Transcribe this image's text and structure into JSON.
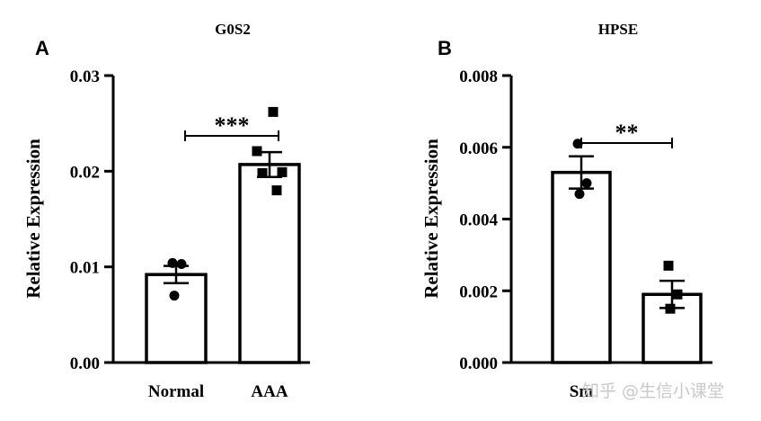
{
  "watermark": "知乎 @生信小课堂",
  "chart_data": [
    {
      "type": "bar",
      "panel": "A",
      "title": "G0S2",
      "ylabel": "Relative  Expression",
      "ylim": [
        0,
        0.03
      ],
      "yticks": [
        "0.00",
        "0.01",
        "0.02",
        "0.03"
      ],
      "ytick_values": [
        0,
        0.01,
        0.02,
        0.03
      ],
      "categories": [
        "Normal",
        "AAA"
      ],
      "values": [
        0.0092,
        0.0207
      ],
      "error": [
        0.0009,
        0.0013
      ],
      "points": [
        [
          0.0104,
          0.0103,
          0.007
        ],
        [
          0.0262,
          0.0221,
          0.0199,
          0.0198,
          0.018
        ]
      ],
      "marker_shapes": [
        "circle",
        "square"
      ],
      "significance": "***"
    },
    {
      "type": "bar",
      "panel": "B",
      "title": "HPSE",
      "ylabel": "Relative  Expression",
      "ylim": [
        0,
        0.008
      ],
      "yticks": [
        "0.000",
        "0.002",
        "0.004",
        "0.006",
        "0.008"
      ],
      "ytick_values": [
        0,
        0.002,
        0.004,
        0.006,
        0.008
      ],
      "categories": [
        "Sm",
        ""
      ],
      "values": [
        0.0053,
        0.0019
      ],
      "error": [
        0.00045,
        0.00038
      ],
      "points": [
        [
          0.0061,
          0.005,
          0.0047
        ],
        [
          0.0027,
          0.0019,
          0.0015
        ]
      ],
      "marker_shapes": [
        "circle",
        "square"
      ],
      "significance": "**"
    }
  ]
}
